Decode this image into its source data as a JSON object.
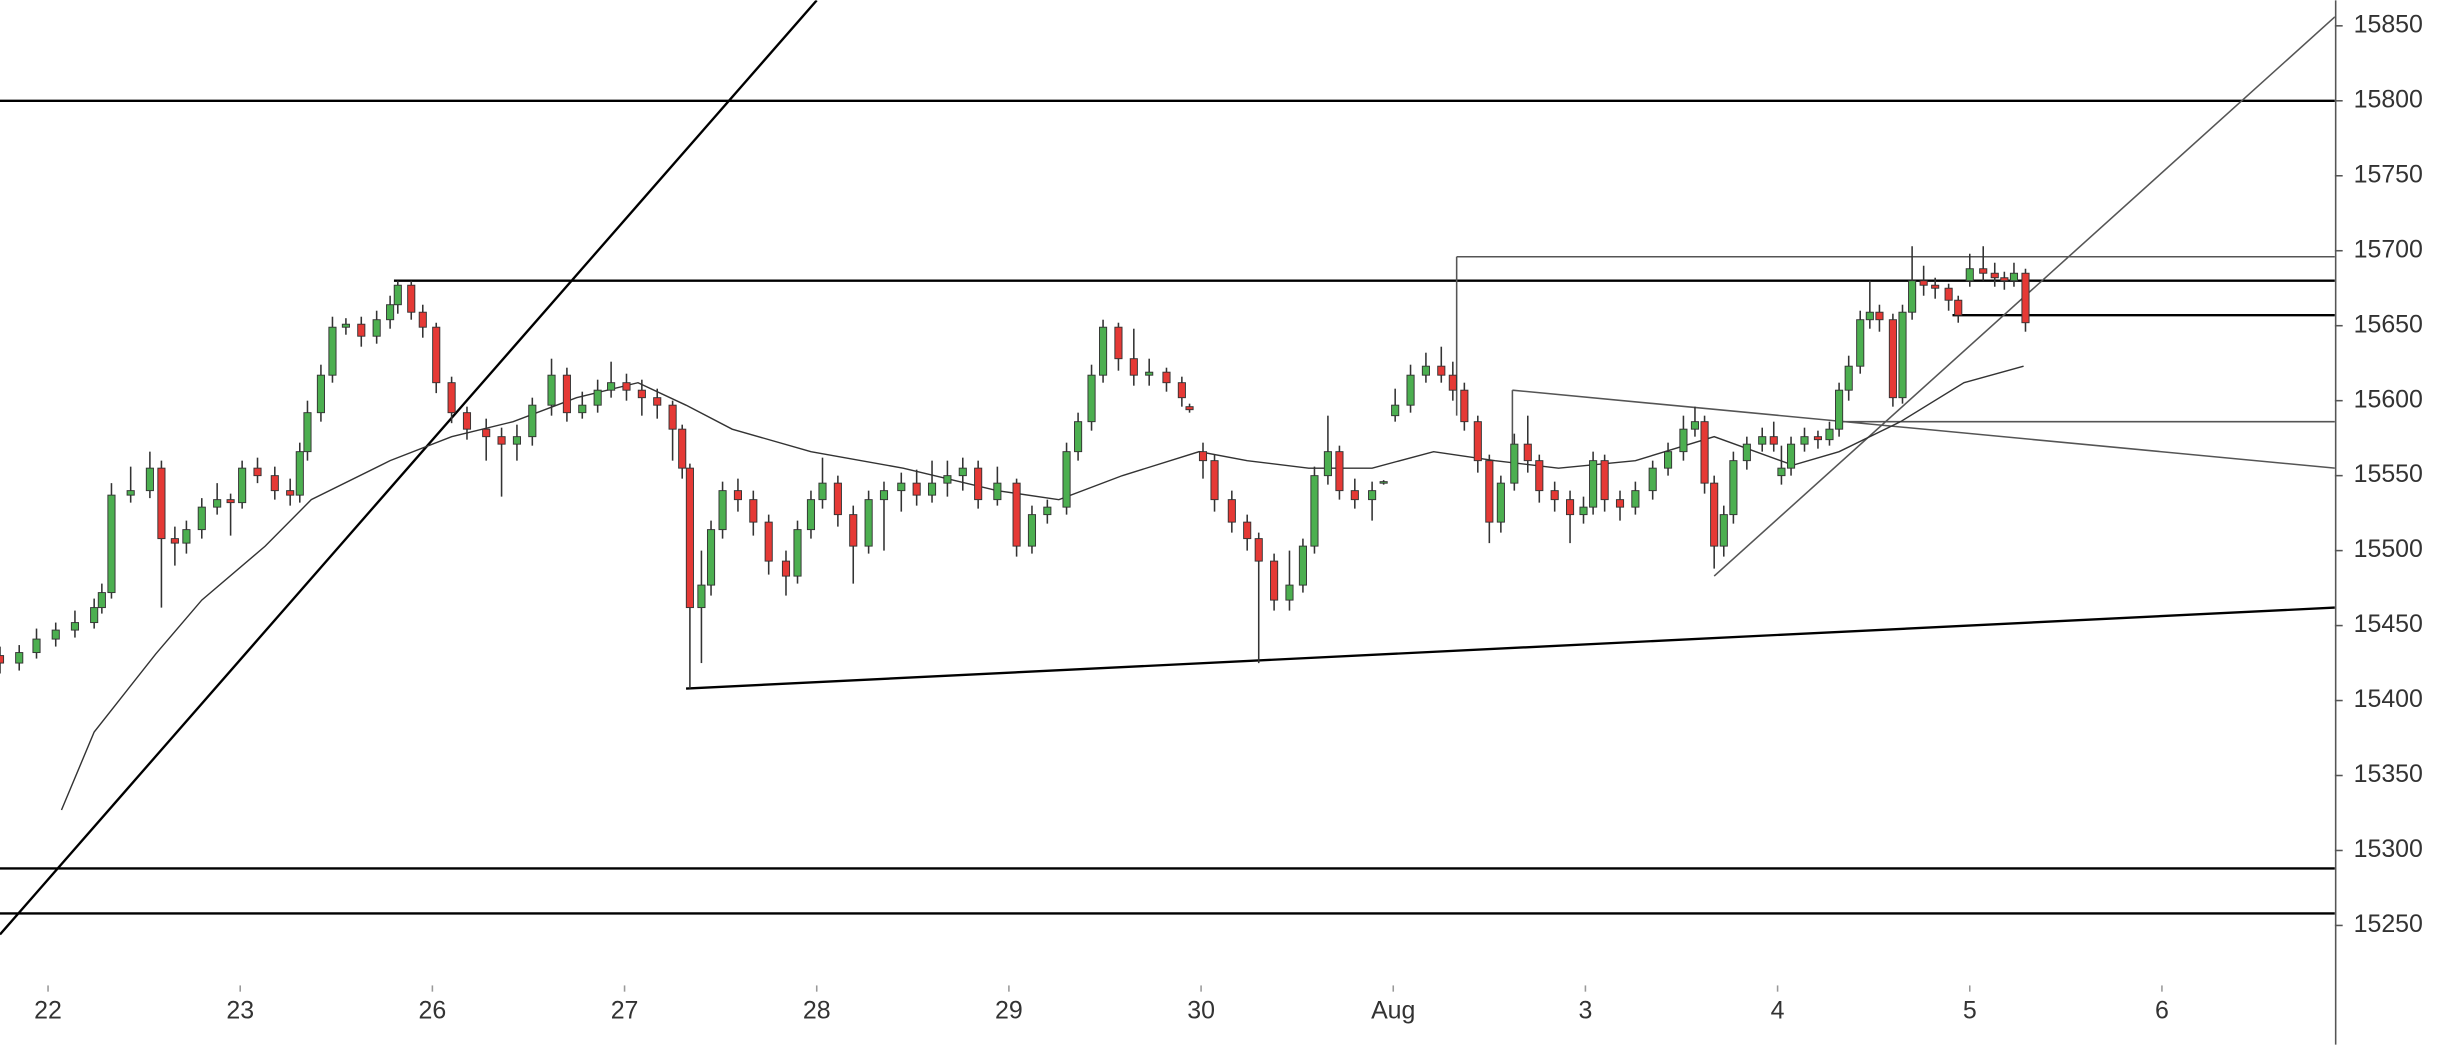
{
  "chart_data": {
    "type": "candlestick",
    "xlim": [
      -0.25,
      11.9
    ],
    "ylim": [
      15210,
      15867
    ],
    "xticks": [
      {
        "value": 0,
        "label": "22"
      },
      {
        "value": 1,
        "label": "23"
      },
      {
        "value": 2,
        "label": "26"
      },
      {
        "value": 3,
        "label": "27"
      },
      {
        "value": 4,
        "label": "28"
      },
      {
        "value": 5,
        "label": "29"
      },
      {
        "value": 6,
        "label": "30"
      },
      {
        "value": 7,
        "label": "Aug"
      },
      {
        "value": 8,
        "label": "3"
      },
      {
        "value": 9,
        "label": "4"
      },
      {
        "value": 10,
        "label": "5"
      },
      {
        "value": 11,
        "label": "6"
      }
    ],
    "yticks": [
      15250,
      15300,
      15350,
      15400,
      15450,
      15500,
      15550,
      15600,
      15650,
      15700,
      15750,
      15800,
      15850
    ],
    "up_color": "#4caf50",
    "down_color": "#e53935",
    "wick_color": "#333333",
    "candles": {
      "x": [
        -0.25,
        -0.15,
        -0.06,
        0.04,
        0.14,
        0.24,
        0.28,
        0.33,
        0.43,
        0.53,
        0.59,
        0.66,
        0.72,
        0.8,
        0.88,
        0.95,
        1.01,
        1.09,
        1.18,
        1.26,
        1.31,
        1.35,
        1.42,
        1.48,
        1.55,
        1.63,
        1.71,
        1.78,
        1.82,
        1.89,
        1.95,
        2.02,
        2.1,
        2.18,
        2.28,
        2.36,
        2.44,
        2.52,
        2.62,
        2.7,
        2.78,
        2.86,
        2.93,
        3.01,
        3.09,
        3.17,
        3.25,
        3.3,
        3.34,
        3.4,
        3.45,
        3.51,
        3.59,
        3.67,
        3.75,
        3.84,
        3.9,
        3.97,
        4.03,
        4.11,
        4.19,
        4.27,
        4.35,
        4.44,
        4.52,
        4.6,
        4.68,
        4.76,
        4.84,
        4.94,
        5.04,
        5.12,
        5.2,
        5.3,
        5.36,
        5.43,
        5.49,
        5.57,
        5.65,
        5.73,
        5.82,
        5.9,
        5.94,
        6.01,
        6.07,
        6.16,
        6.24,
        6.3,
        6.38,
        6.46,
        6.53,
        6.59,
        6.66,
        6.72,
        6.8,
        6.89,
        6.95,
        7.01,
        7.09,
        7.17,
        7.25,
        7.31,
        7.37,
        7.44,
        7.5,
        7.56,
        7.63,
        7.7,
        7.76,
        7.84,
        7.92,
        7.99,
        8.04,
        8.1,
        8.18,
        8.26,
        8.35,
        8.43,
        8.51,
        8.57,
        8.62,
        8.67,
        8.72,
        8.77,
        8.84,
        8.92,
        8.98,
        9.02,
        9.07,
        9.14,
        9.21,
        9.27,
        9.32,
        9.37,
        9.43,
        9.48,
        9.53,
        9.6,
        9.65,
        9.7,
        9.76,
        9.82,
        9.89,
        9.94,
        10.0,
        10.07,
        10.13,
        10.18,
        10.23,
        10.29
      ],
      "open": [
        15430,
        15425,
        15432,
        15441,
        15447,
        15452,
        15462,
        15472,
        15537,
        15540,
        15555,
        15508,
        15505,
        15514,
        15529,
        15534,
        15532,
        15555,
        15550,
        15540,
        15537,
        15566,
        15592,
        15617,
        15649,
        15651,
        15643,
        15654,
        15664,
        15677,
        15659,
        15649,
        15612,
        15592,
        15581,
        15576,
        15571,
        15576,
        15597,
        15617,
        15592,
        15597,
        15607,
        15612,
        15607,
        15602,
        15597,
        15581,
        15555,
        15462,
        15477,
        15514,
        15540,
        15534,
        15519,
        15493,
        15483,
        15514,
        15534,
        15545,
        15524,
        15503,
        15534,
        15540,
        15545,
        15537,
        15545,
        15550,
        15555,
        15534,
        15545,
        15503,
        15524,
        15529,
        15566,
        15586,
        15617,
        15649,
        15628,
        15617,
        15619,
        15612,
        15596,
        15566,
        15560,
        15534,
        15519,
        15508,
        15493,
        15467,
        15477,
        15503,
        15550,
        15566,
        15540,
        15534,
        15545,
        15590,
        15597,
        15617,
        15623,
        15617,
        15607,
        15586,
        15560,
        15519,
        15545,
        15571,
        15560,
        15540,
        15534,
        15524,
        15529,
        15560,
        15534,
        15529,
        15540,
        15555,
        15566,
        15581,
        15586,
        15545,
        15503,
        15524,
        15560,
        15571,
        15576,
        15550,
        15555,
        15571,
        15576,
        15574,
        15581,
        15607,
        15623,
        15654,
        15659,
        15654,
        15602,
        15659,
        15680,
        15677,
        15675,
        15667,
        15680,
        15688,
        15685,
        15682,
        15680,
        15685
      ],
      "high": [
        15436,
        15437,
        15448,
        15452,
        15460,
        15468,
        15478,
        15545,
        15556,
        15566,
        15560,
        15516,
        15520,
        15535,
        15545,
        15538,
        15560,
        15562,
        15556,
        15548,
        15572,
        15600,
        15624,
        15656,
        15655,
        15656,
        15660,
        15670,
        15680,
        15680,
        15664,
        15652,
        15616,
        15596,
        15588,
        15582,
        15584,
        15602,
        15628,
        15622,
        15606,
        15614,
        15626,
        15618,
        15614,
        15608,
        15600,
        15584,
        15558,
        15500,
        15520,
        15546,
        15548,
        15540,
        15524,
        15500,
        15520,
        15540,
        15562,
        15550,
        15530,
        15540,
        15546,
        15552,
        15554,
        15560,
        15560,
        15562,
        15560,
        15556,
        15548,
        15530,
        15534,
        15572,
        15592,
        15624,
        15654,
        15652,
        15648,
        15628,
        15622,
        15616,
        15598,
        15572,
        15564,
        15540,
        15524,
        15512,
        15498,
        15500,
        15508,
        15556,
        15590,
        15570,
        15548,
        15546,
        15547,
        15608,
        15624,
        15632,
        15636,
        15626,
        15612,
        15590,
        15564,
        15550,
        15578,
        15590,
        15564,
        15546,
        15540,
        15536,
        15566,
        15564,
        15540,
        15546,
        15560,
        15572,
        15590,
        15596,
        15590,
        15550,
        15530,
        15566,
        15576,
        15582,
        15586,
        15570,
        15576,
        15582,
        15580,
        15586,
        15612,
        15630,
        15660,
        15680,
        15664,
        15658,
        15664,
        15703,
        15690,
        15682,
        15678,
        15670,
        15698,
        15703,
        15692,
        15686,
        15692,
        15688
      ],
      "low": [
        15418,
        15420,
        15428,
        15436,
        15442,
        15448,
        15458,
        15468,
        15532,
        15535,
        15462,
        15490,
        15498,
        15508,
        15524,
        15510,
        15528,
        15545,
        15534,
        15530,
        15532,
        15560,
        15586,
        15612,
        15644,
        15636,
        15638,
        15648,
        15658,
        15654,
        15642,
        15605,
        15585,
        15574,
        15560,
        15536,
        15560,
        15570,
        15590,
        15586,
        15588,
        15592,
        15602,
        15600,
        15590,
        15588,
        15560,
        15548,
        15408,
        15425,
        15470,
        15508,
        15526,
        15510,
        15484,
        15470,
        15478,
        15508,
        15528,
        15516,
        15478,
        15498,
        15500,
        15526,
        15530,
        15532,
        15536,
        15540,
        15528,
        15530,
        15496,
        15498,
        15518,
        15524,
        15560,
        15580,
        15612,
        15620,
        15610,
        15610,
        15606,
        15596,
        15592,
        15548,
        15526,
        15512,
        15500,
        15425,
        15460,
        15460,
        15472,
        15498,
        15544,
        15534,
        15528,
        15520,
        15544,
        15586,
        15592,
        15612,
        15612,
        15600,
        15580,
        15552,
        15505,
        15512,
        15540,
        15552,
        15532,
        15526,
        15505,
        15518,
        15524,
        15526,
        15520,
        15524,
        15534,
        15550,
        15560,
        15576,
        15538,
        15488,
        15496,
        15518,
        15554,
        15566,
        15566,
        15544,
        15550,
        15566,
        15568,
        15570,
        15576,
        15600,
        15618,
        15648,
        15646,
        15596,
        15598,
        15654,
        15670,
        15668,
        15660,
        15652,
        15676,
        15680,
        15676,
        15674,
        15676,
        15646
      ],
      "close": [
        15425,
        15432,
        15441,
        15447,
        15452,
        15462,
        15472,
        15537,
        15540,
        15555,
        15508,
        15505,
        15514,
        15529,
        15534,
        15532,
        15555,
        15550,
        15540,
        15537,
        15566,
        15592,
        15617,
        15649,
        15651,
        15643,
        15654,
        15664,
        15677,
        15659,
        15649,
        15612,
        15592,
        15581,
        15576,
        15571,
        15576,
        15597,
        15617,
        15592,
        15597,
        15607,
        15612,
        15607,
        15602,
        15597,
        15581,
        15555,
        15462,
        15477,
        15514,
        15540,
        15534,
        15519,
        15493,
        15483,
        15514,
        15534,
        15545,
        15524,
        15503,
        15534,
        15540,
        15545,
        15537,
        15545,
        15550,
        15555,
        15534,
        15545,
        15503,
        15524,
        15529,
        15566,
        15586,
        15617,
        15649,
        15628,
        15617,
        15619,
        15612,
        15602,
        15594,
        15560,
        15534,
        15519,
        15508,
        15493,
        15467,
        15477,
        15503,
        15550,
        15566,
        15540,
        15534,
        15540,
        15546,
        15597,
        15617,
        15623,
        15617,
        15607,
        15586,
        15560,
        15519,
        15545,
        15571,
        15560,
        15540,
        15534,
        15524,
        15529,
        15560,
        15534,
        15529,
        15540,
        15555,
        15566,
        15581,
        15586,
        15545,
        15503,
        15524,
        15560,
        15571,
        15576,
        15571,
        15555,
        15571,
        15576,
        15574,
        15581,
        15607,
        15623,
        15654,
        15659,
        15654,
        15602,
        15659,
        15680,
        15677,
        15675,
        15667,
        15657,
        15688,
        15685,
        15682,
        15680,
        15685,
        15652
      ]
    },
    "ma": {
      "color": "#333333",
      "x": [
        0.07,
        0.24,
        0.56,
        0.8,
        1.13,
        1.37,
        1.78,
        2.1,
        2.42,
        2.75,
        3.07,
        3.32,
        3.56,
        3.97,
        4.45,
        4.94,
        5.26,
        5.59,
        5.99,
        6.24,
        6.56,
        6.89,
        7.21,
        7.53,
        7.86,
        8.26,
        8.67,
        9.08,
        9.32,
        9.64,
        9.97,
        10.28
      ],
      "values": [
        15327,
        15379,
        15431,
        15467,
        15503,
        15534,
        15560,
        15576,
        15586,
        15602,
        15612,
        15597,
        15581,
        15566,
        15555,
        15540,
        15534,
        15550,
        15566,
        15560,
        15555,
        15555,
        15566,
        15560,
        15555,
        15560,
        15576,
        15557,
        15566,
        15586,
        15612,
        15623
      ]
    },
    "drawings": [
      {
        "x": [
          -0.25,
          4.0
        ],
        "y": [
          15244,
          15867
        ],
        "color": "#000000",
        "width": 1.5
      },
      {
        "x": [
          -0.25,
          11.9
        ],
        "y": [
          15800,
          15800
        ],
        "color": "#000000",
        "width": 1.5
      },
      {
        "x": [
          -0.25,
          11.9
        ],
        "y": [
          15288,
          15288
        ],
        "color": "#000000",
        "width": 1.5
      },
      {
        "x": [
          -0.25,
          11.9
        ],
        "y": [
          15258,
          15258
        ],
        "color": "#000000",
        "width": 1.5
      },
      {
        "x": [
          1.8,
          11.9
        ],
        "y": [
          15680,
          15680
        ],
        "color": "#000000",
        "width": 1.5
      },
      {
        "x": [
          3.32,
          11.9
        ],
        "y": [
          15408,
          15462
        ],
        "color": "#000000",
        "width": 1.5
      },
      {
        "x": [
          9.91,
          11.9
        ],
        "y": [
          15657,
          15657
        ],
        "color": "#000000",
        "width": 1.5
      },
      {
        "x": [
          7.33,
          11.9
        ],
        "y": [
          15696,
          15696
        ],
        "color": "#555555",
        "width": 1
      },
      {
        "x": [
          7.33,
          7.33
        ],
        "y": [
          15696,
          15590
        ],
        "color": "#555555",
        "width": 1
      },
      {
        "x": [
          7.62,
          11.9
        ],
        "y": [
          15607,
          15555
        ],
        "color": "#555555",
        "width": 1
      },
      {
        "x": [
          7.62,
          7.62
        ],
        "y": [
          15607,
          15548
        ],
        "color": "#555555",
        "width": 1
      },
      {
        "x": [
          9.32,
          11.9
        ],
        "y": [
          15586,
          15586
        ],
        "color": "#555555",
        "width": 1
      },
      {
        "x": [
          8.67,
          11.9
        ],
        "y": [
          15483,
          15856
        ],
        "color": "#555555",
        "width": 1
      }
    ]
  }
}
